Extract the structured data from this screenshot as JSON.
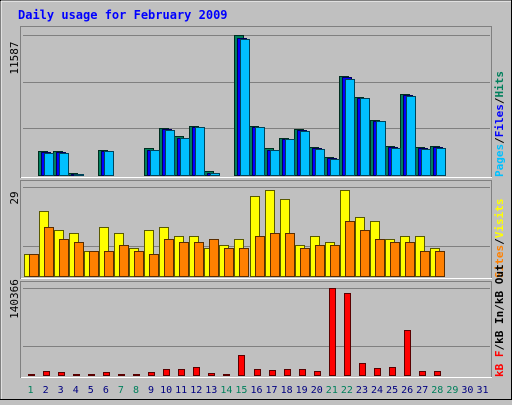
{
  "chart_data": {
    "type": "bar",
    "title": "Daily usage for February 2009",
    "categories": [
      "1",
      "2",
      "3",
      "4",
      "5",
      "6",
      "7",
      "8",
      "9",
      "10",
      "11",
      "12",
      "13",
      "14",
      "15",
      "16",
      "17",
      "18",
      "19",
      "20",
      "21",
      "22",
      "23",
      "24",
      "25",
      "26",
      "27",
      "28",
      "29",
      "30",
      "31"
    ],
    "weekend_days": [
      "1",
      "7",
      "8",
      "14",
      "15",
      "21",
      "22",
      "28",
      "29"
    ],
    "panels": [
      {
        "name": "pages-files-hits",
        "max_label": "11587",
        "ymax": 11587,
        "legend": [
          "Pages",
          "/",
          "Files",
          "/",
          "Hits"
        ],
        "series": [
          {
            "name": "Hits",
            "color": "#00805c",
            "values": [
              0,
              2000,
              2000,
              200,
              0,
              2100,
              0,
              0,
              2200,
              3900,
              3200,
              4100,
              300,
              0,
              11587,
              4100,
              2200,
              3100,
              3800,
              2300,
              1500,
              8200,
              6500,
              4600,
              2400,
              6700,
              2300,
              2400,
              0,
              0,
              0
            ]
          },
          {
            "name": "Files",
            "color": "#0000ff",
            "values": [
              0,
              1900,
              1900,
              100,
              0,
              2000,
              0,
              0,
              2100,
              3800,
              3100,
              4000,
              200,
              0,
              11400,
              4000,
              2100,
              3000,
              3700,
              2200,
              1400,
              8100,
              6400,
              4500,
              2300,
              6600,
              2200,
              2300,
              0,
              0,
              0
            ]
          },
          {
            "name": "Pages",
            "color": "#00c0ff",
            "values": [
              0,
              1850,
              1850,
              80,
              0,
              1950,
              0,
              0,
              2050,
              3750,
              3050,
              3950,
              180,
              0,
              11300,
              3950,
              2050,
              2950,
              3650,
              2150,
              1350,
              8000,
              6350,
              4450,
              2250,
              6550,
              2150,
              2250,
              0,
              0,
              0
            ]
          }
        ]
      },
      {
        "name": "visits-sites",
        "max_label": "29",
        "ymax": 29,
        "legend": [
          "Sites",
          "/",
          "Visits"
        ],
        "series": [
          {
            "name": "Visits",
            "color": "#ffff00",
            "values": [
              7,
              21,
              15,
              14,
              8,
              16,
              14,
              9,
              15,
              16,
              13,
              13,
              9,
              10,
              12,
              26,
              28,
              25,
              10,
              13,
              11,
              28,
              19,
              18,
              12,
              13,
              13,
              9,
              0,
              0,
              0
            ]
          },
          {
            "name": "Sites",
            "color": "#ff8000",
            "values": [
              7,
              16,
              12,
              11,
              8,
              8,
              10,
              8,
              7,
              12,
              11,
              11,
              12,
              9,
              9,
              13,
              14,
              14,
              9,
              10,
              10,
              18,
              15,
              12,
              11,
              11,
              8,
              8,
              0,
              0,
              0
            ]
          }
        ]
      },
      {
        "name": "kb",
        "max_label": "140366",
        "ymax": 140366,
        "legend": [
          "kB F",
          "/",
          "kB In",
          "/",
          "kB Out"
        ],
        "series": [
          {
            "name": "kB F",
            "color": "#ff0000",
            "values": [
              1500,
              7000,
              5500,
              2000,
              2000,
              5000,
              2000,
              2000,
              5000,
              9000,
              9000,
              13000,
              3000,
              2000,
              32000,
              10000,
              8000,
              9000,
              10000,
              7000,
              140366,
              132000,
              20000,
              12000,
              13000,
              73000,
              7000,
              7000,
              0,
              0,
              0
            ]
          }
        ]
      }
    ],
    "colors": {
      "background": "#c0c0c0",
      "title": "#0000ff",
      "weekday_label": "#000080",
      "weekend_label": "#00805c",
      "frame_dark": "#808080",
      "frame_light": "#ffffff"
    }
  }
}
